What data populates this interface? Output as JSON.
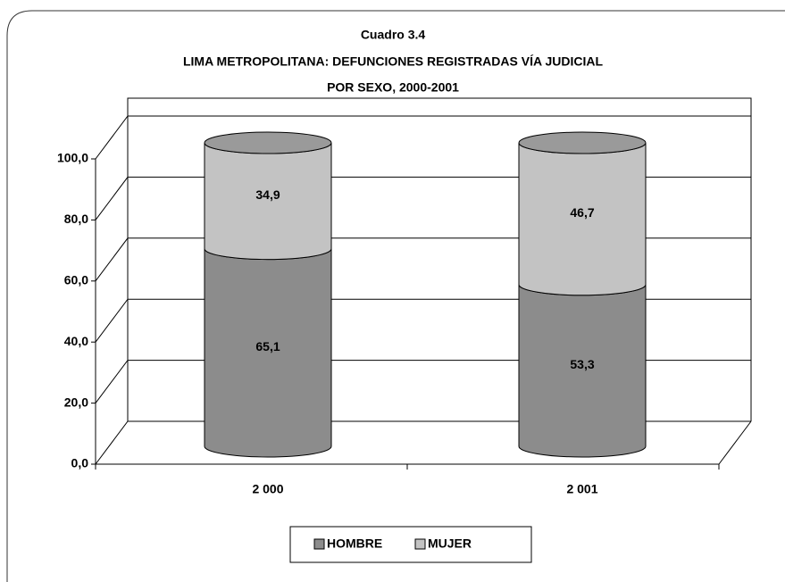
{
  "chart_data": {
    "type": "stacked-cylinder",
    "title": [
      "Cuadro 3.4",
      "LIMA METROPOLITANA: DEFUNCIONES REGISTRADAS VÍA JUDICIAL",
      "POR SEXO, 2000-2001"
    ],
    "categories": [
      "2 000",
      "2 001"
    ],
    "series": [
      {
        "name": "HOMBRE",
        "color": "#8c8c8c",
        "values": [
          65.1,
          53.3
        ],
        "value_labels": [
          "65,1",
          "53,3"
        ]
      },
      {
        "name": "MUJER",
        "color": "#c3c3c3",
        "values": [
          34.9,
          46.7
        ],
        "value_labels": [
          "34,9",
          "46,7"
        ]
      }
    ],
    "ylim": [
      0,
      100
    ],
    "yticks": [
      {
        "value": 0,
        "label": "0,0"
      },
      {
        "value": 20,
        "label": "20,0"
      },
      {
        "value": 40,
        "label": "40,0"
      },
      {
        "value": 60,
        "label": "60,0"
      },
      {
        "value": 80,
        "label": "80,0"
      },
      {
        "value": 100,
        "label": "100,0"
      }
    ],
    "grid": true,
    "legend": "bottom"
  }
}
